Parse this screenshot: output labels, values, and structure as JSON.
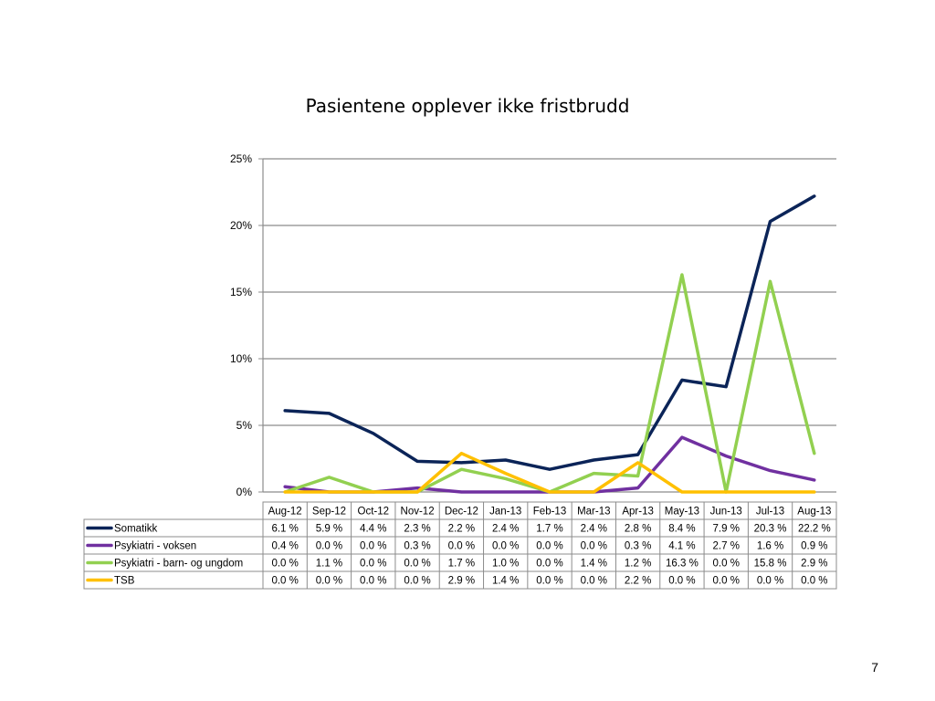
{
  "slide": {
    "title": "Pasientene opplever ikke fristbrudd",
    "page_number": "7"
  },
  "colors": {
    "Somatikk": "#0b2458",
    "Psykiatri - voksen": "#7030a0",
    "Psykiatri - barn- og ungdom": "#92d050",
    "TSB": "#ffc000"
  },
  "chart_data": {
    "type": "line",
    "title": "Pasientene opplever ikke fristbrudd",
    "categories": [
      "Aug-12",
      "Sep-12",
      "Oct-12",
      "Nov-12",
      "Dec-12",
      "Jan-13",
      "Feb-13",
      "Mar-13",
      "Apr-13",
      "May-13",
      "Jun-13",
      "Jul-13",
      "Aug-13"
    ],
    "ylim": [
      0,
      25
    ],
    "yticks": [
      0,
      5,
      10,
      15,
      20,
      25
    ],
    "ytick_labels": [
      "0%",
      "5%",
      "10%",
      "15%",
      "20%",
      "25%"
    ],
    "grid": true,
    "legend": "data-table",
    "series": [
      {
        "name": "Somatikk",
        "values": [
          6.1,
          5.9,
          4.4,
          2.3,
          2.2,
          2.4,
          1.7,
          2.4,
          2.8,
          8.4,
          7.9,
          20.3,
          22.2
        ],
        "labels": [
          "6.1 %",
          "5.9 %",
          "4.4 %",
          "2.3 %",
          "2.2 %",
          "2.4 %",
          "1.7 %",
          "2.4 %",
          "2.8 %",
          "8.4 %",
          "7.9 %",
          "20.3 %",
          "22.2 %"
        ]
      },
      {
        "name": "Psykiatri - voksen",
        "values": [
          0.4,
          0.0,
          0.0,
          0.3,
          0.0,
          0.0,
          0.0,
          0.0,
          0.3,
          4.1,
          2.7,
          1.6,
          0.9
        ],
        "labels": [
          "0.4 %",
          "0.0 %",
          "0.0 %",
          "0.3 %",
          "0.0 %",
          "0.0 %",
          "0.0 %",
          "0.0 %",
          "0.3 %",
          "4.1 %",
          "2.7 %",
          "1.6 %",
          "0.9 %"
        ]
      },
      {
        "name": "Psykiatri - barn- og ungdom",
        "values": [
          0.0,
          1.1,
          0.0,
          0.0,
          1.7,
          1.0,
          0.0,
          1.4,
          1.2,
          16.3,
          0.0,
          15.8,
          2.9
        ],
        "labels": [
          "0.0 %",
          "1.1 %",
          "0.0 %",
          "0.0 %",
          "1.7 %",
          "1.0 %",
          "0.0 %",
          "1.4 %",
          "1.2 %",
          "16.3 %",
          "0.0 %",
          "15.8 %",
          "2.9 %"
        ]
      },
      {
        "name": "TSB",
        "values": [
          0.0,
          0.0,
          0.0,
          0.0,
          2.9,
          1.4,
          0.0,
          0.0,
          2.2,
          0.0,
          0.0,
          0.0,
          0.0
        ],
        "labels": [
          "0.0 %",
          "0.0 %",
          "0.0 %",
          "0.0 %",
          "2.9 %",
          "1.4 %",
          "0.0 %",
          "0.0 %",
          "2.2 %",
          "0.0 %",
          "0.0 %",
          "0.0 %",
          "0.0 %"
        ]
      }
    ]
  }
}
